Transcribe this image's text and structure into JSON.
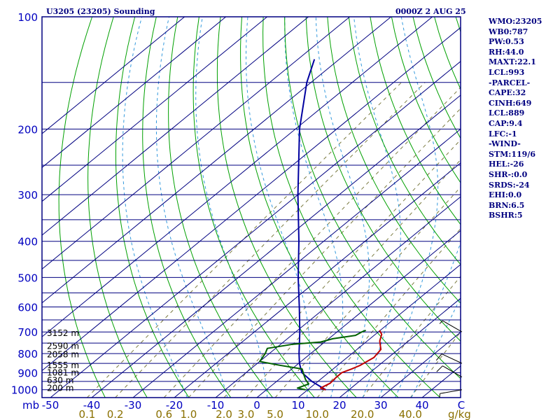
{
  "header": {
    "title_left": "U3205 (23205) Sounding",
    "title_right": "0000Z  2 AUG 25"
  },
  "indices": [
    "WMO:23205",
    "WB0:787",
    "PW:0.53",
    "RH:44.0",
    "MAXT:22.1",
    "LCL:993",
    "-PARCEL-",
    "CAPE:32",
    "CINH:649",
    "LCL:889",
    "CAP:9.4",
    "LFC:-1",
    "-WIND-",
    "STM:119/6",
    "HEL:-26",
    "SHR-:0.0",
    "SRDS:-24",
    "EHI:0.0",
    "BRN:6.5",
    "BSHR:5"
  ],
  "colors": {
    "frame": "#000080",
    "isobar": "#000080",
    "isotherm": "#000080",
    "dry_adiabat": "#00a000",
    "moist_adiabat": "#3399dd",
    "mixing_ratio": "#7a7a40",
    "temperature": "#c00000",
    "dewpoint": "#006000",
    "parcel": "#0000a0",
    "label_blue": "#0000c0",
    "label_olive": "#8a7000",
    "wind": "#000000"
  },
  "chart_data": {
    "type": "skew-t log-p sounding",
    "p_range_mb": [
      1050,
      100
    ],
    "pressure_ticks": [
      100,
      200,
      300,
      400,
      500,
      600,
      700,
      800,
      900,
      1000
    ],
    "pressure_unit": "mb",
    "temperature_ticks": [
      -50,
      -40,
      -30,
      -20,
      -10,
      0,
      10,
      20,
      30,
      40,
      50
    ],
    "temperature_labels": [
      "-50",
      "-40",
      "-30",
      "-20",
      "-10",
      "0",
      "10",
      "20",
      "30",
      "40",
      "C"
    ],
    "mixing_ratio_labels": [
      "0.1",
      "0.2",
      "0.6",
      "1.0",
      "2.0",
      "3.0",
      "5.0",
      "10.0",
      "20.0",
      "40.0"
    ],
    "mixing_ratio_unit": "g/kg",
    "height_labels": [
      {
        "p": 705,
        "text": "3152 m"
      },
      {
        "p": 765,
        "text": "2590 m"
      },
      {
        "p": 805,
        "text": "2058 m"
      },
      {
        "p": 860,
        "text": "1555 m"
      },
      {
        "p": 900,
        "text": "1081 m"
      },
      {
        "p": 945,
        "text": "630 m"
      },
      {
        "p": 990,
        "text": "200 m"
      }
    ],
    "temperature_profile": [
      {
        "p": 1001,
        "t": 14.4
      },
      {
        "p": 990,
        "t": 12.6
      },
      {
        "p": 960,
        "t": 13.5
      },
      {
        "p": 925,
        "t": 13.2
      },
      {
        "p": 900,
        "t": 13.2
      },
      {
        "p": 880,
        "t": 14.5
      },
      {
        "p": 860,
        "t": 15.5
      },
      {
        "p": 820,
        "t": 16.5
      },
      {
        "p": 780,
        "t": 15.8
      },
      {
        "p": 740,
        "t": 13.0
      },
      {
        "p": 710,
        "t": 11.5
      },
      {
        "p": 693,
        "t": 9.8
      }
    ],
    "dewpoint_profile": [
      {
        "p": 1001,
        "t": 9.5
      },
      {
        "p": 990,
        "t": 7.0
      },
      {
        "p": 965,
        "t": 8.5
      },
      {
        "p": 940,
        "t": 6.5
      },
      {
        "p": 910,
        "t": 4.5
      },
      {
        "p": 880,
        "t": 2.5
      },
      {
        "p": 860,
        "t": -4.0
      },
      {
        "p": 840,
        "t": -10.0
      },
      {
        "p": 800,
        "t": -11.0
      },
      {
        "p": 775,
        "t": -12.0
      },
      {
        "p": 755,
        "t": -7.0
      },
      {
        "p": 745,
        "t": -1.0
      },
      {
        "p": 730,
        "t": 1.0
      },
      {
        "p": 715,
        "t": 5.5
      },
      {
        "p": 700,
        "t": 6.0
      },
      {
        "p": 693,
        "t": 6.5
      }
    ],
    "parcel_profile": [
      {
        "p": 1001,
        "t": 14.4
      },
      {
        "p": 950,
        "t": 8.5
      },
      {
        "p": 900,
        "t": 3.5
      },
      {
        "p": 850,
        "t": 0.2
      },
      {
        "p": 800,
        "t": -2.8
      },
      {
        "p": 700,
        "t": -9.0
      },
      {
        "p": 600,
        "t": -16.5
      },
      {
        "p": 500,
        "t": -25.5
      },
      {
        "p": 400,
        "t": -36.0
      },
      {
        "p": 300,
        "t": -50.0
      },
      {
        "p": 200,
        "t": -69.0
      },
      {
        "p": 150,
        "t": -81.0
      },
      {
        "p": 130,
        "t": -86.0
      }
    ],
    "wind_barbs": [
      {
        "p": 700,
        "dir": 300,
        "spd": 5
      },
      {
        "p": 850,
        "dir": 295,
        "spd": 10
      },
      {
        "p": 925,
        "dir": 300,
        "spd": 10
      },
      {
        "p": 1000,
        "dir": 260,
        "spd": 5
      }
    ]
  }
}
